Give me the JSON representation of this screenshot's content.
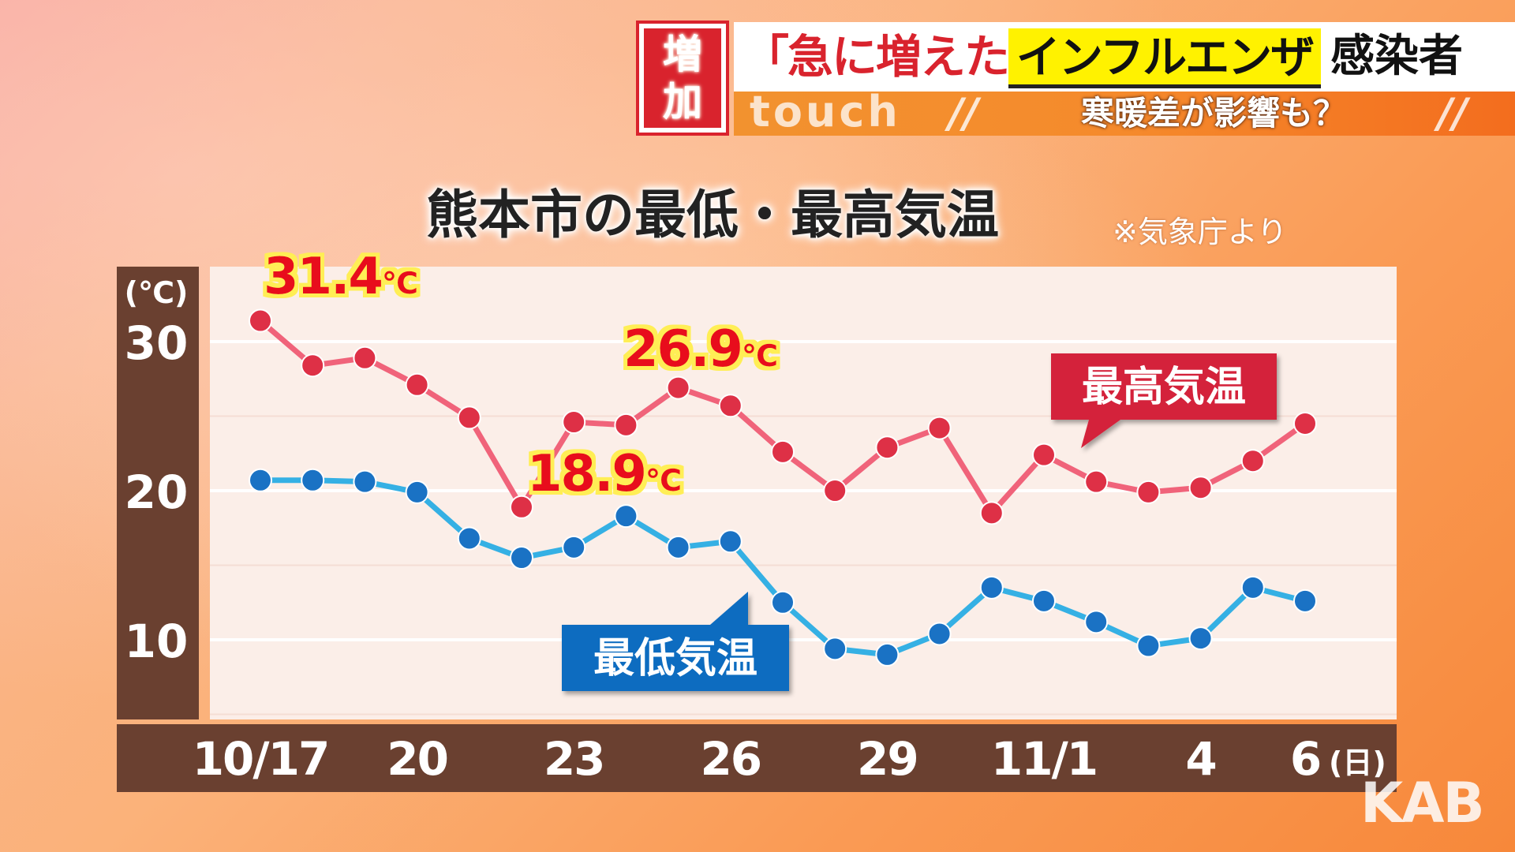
{
  "header": {
    "badge_line1": "増",
    "badge_line2": "加",
    "headline_quote": "「急に増えた」",
    "headline_highlight": "インフルエンザ",
    "headline_rest": "感染者",
    "program": "touch",
    "slashes": "//",
    "subtitle": "寒暖差が影響も？"
  },
  "chart_title": "熊本市の最低・最高気温",
  "source_note": "※気象庁より",
  "logo": "KAB",
  "chart_data": {
    "type": "line",
    "title": "熊本市の最低・最高気温",
    "ylabel": "(℃)",
    "ylim": [
      5,
      33
    ],
    "yticks": [
      10,
      20,
      30
    ],
    "x": [
      "10/17",
      "10/18",
      "10/19",
      "10/20",
      "10/21",
      "10/22",
      "10/23",
      "10/24",
      "10/25",
      "10/26",
      "10/27",
      "10/28",
      "10/29",
      "10/30",
      "10/31",
      "11/1",
      "11/2",
      "11/3",
      "11/4",
      "11/5",
      "11/6"
    ],
    "xtick_labels": [
      {
        "index": 0,
        "label": "10/17"
      },
      {
        "index": 3,
        "label": "20"
      },
      {
        "index": 6,
        "label": "23"
      },
      {
        "index": 9,
        "label": "26"
      },
      {
        "index": 12,
        "label": "29"
      },
      {
        "index": 15,
        "label": "11/1"
      },
      {
        "index": 18,
        "label": "4"
      },
      {
        "index": 20,
        "label": "6",
        "suffix": "(日)"
      }
    ],
    "series": [
      {
        "name": "最高気温",
        "color": "#de3046",
        "line_color": "#f0637a",
        "values": [
          31.4,
          28.4,
          28.9,
          27.1,
          24.9,
          18.9,
          24.6,
          24.4,
          26.9,
          25.7,
          22.6,
          20.0,
          22.9,
          24.2,
          18.5,
          22.4,
          20.6,
          19.9,
          20.2,
          22.0,
          24.5
        ]
      },
      {
        "name": "最低気温",
        "color": "#1a72c4",
        "line_color": "#35b0e4",
        "values": [
          20.7,
          20.7,
          20.6,
          19.9,
          16.8,
          15.5,
          16.2,
          18.3,
          16.2,
          16.6,
          12.5,
          9.4,
          9.0,
          10.4,
          13.5,
          12.6,
          11.2,
          9.6,
          10.1,
          13.5,
          12.6
        ]
      }
    ],
    "annotations": [
      {
        "series": 0,
        "index": 0,
        "value": "31.4",
        "unit": "℃"
      },
      {
        "series": 0,
        "index": 5,
        "value": "18.9",
        "unit": "℃"
      },
      {
        "series": 0,
        "index": 8,
        "value": "26.9",
        "unit": "℃"
      }
    ],
    "legend_labels": [
      {
        "series": 0,
        "text": "最高気温",
        "color": "#d4203a"
      },
      {
        "series": 1,
        "text": "最低気温",
        "color": "#0c6cc0"
      }
    ],
    "grid": true,
    "plot_background": "#fbeee8",
    "axis_band_color": "#6a4030"
  }
}
